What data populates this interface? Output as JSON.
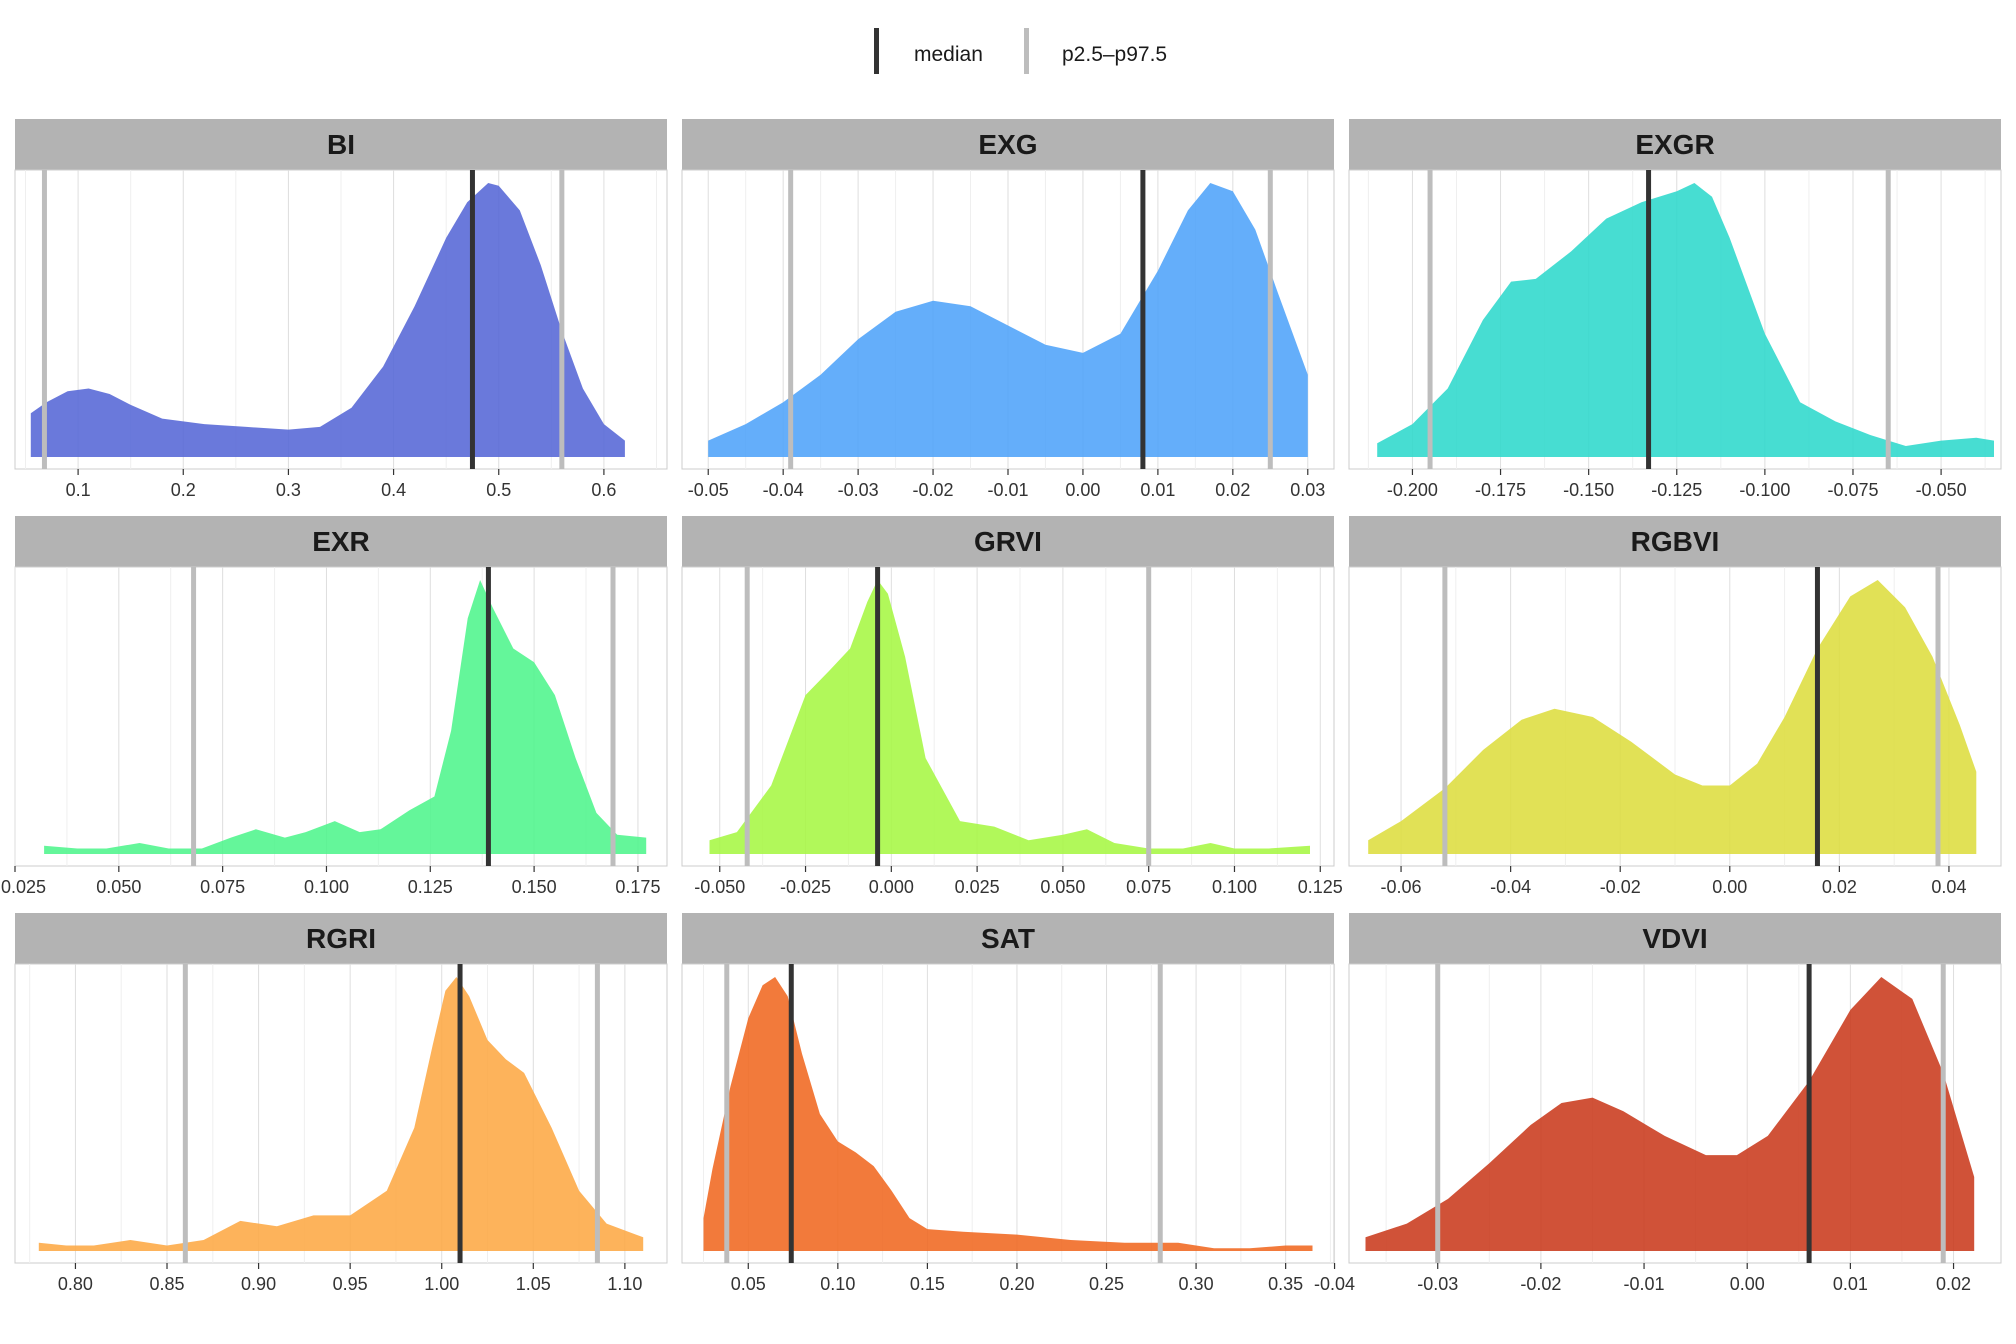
{
  "legend": {
    "median_label": "median",
    "range_label": "p2.5–p97.5",
    "median_color": "#333333",
    "range_color": "#bdbdbd"
  },
  "chart_data": [
    {
      "type": "area",
      "title": "BI",
      "color": "#5566D6",
      "xlim": [
        0.04,
        0.66
      ],
      "ticks": [
        0.1,
        0.2,
        0.3,
        0.4,
        0.5,
        0.6
      ],
      "tick_labels": [
        "0.1",
        "0.2",
        "0.3",
        "0.4",
        "0.5",
        "0.6"
      ],
      "median": 0.475,
      "p2_5": 0.068,
      "p97_5": 0.56,
      "density_x": [
        0.055,
        0.07,
        0.09,
        0.11,
        0.13,
        0.15,
        0.18,
        0.22,
        0.26,
        0.3,
        0.33,
        0.36,
        0.39,
        0.42,
        0.45,
        0.47,
        0.49,
        0.5,
        0.52,
        0.54,
        0.56,
        0.58,
        0.6,
        0.62
      ],
      "density_y": [
        0.16,
        0.2,
        0.24,
        0.25,
        0.23,
        0.19,
        0.14,
        0.12,
        0.11,
        0.1,
        0.11,
        0.18,
        0.33,
        0.55,
        0.8,
        0.93,
        1.0,
        0.99,
        0.9,
        0.7,
        0.46,
        0.25,
        0.12,
        0.06
      ]
    },
    {
      "type": "area",
      "title": "EXG",
      "color": "#4FA3F9",
      "xlim": [
        -0.0535,
        0.0335
      ],
      "ticks": [
        -0.05,
        -0.04,
        -0.03,
        -0.02,
        -0.01,
        0.0,
        0.01,
        0.02,
        0.03
      ],
      "tick_labels": [
        "-0.05",
        "-0.04",
        "-0.03",
        "-0.02",
        "-0.01",
        "0.00",
        "0.01",
        "0.02",
        "0.03"
      ],
      "median": 0.008,
      "p2_5": -0.039,
      "p97_5": 0.025,
      "density_x": [
        -0.05,
        -0.045,
        -0.04,
        -0.035,
        -0.03,
        -0.025,
        -0.02,
        -0.015,
        -0.01,
        -0.005,
        0.0,
        0.005,
        0.01,
        0.014,
        0.017,
        0.02,
        0.023,
        0.026,
        0.03
      ],
      "density_y": [
        0.06,
        0.12,
        0.2,
        0.3,
        0.43,
        0.53,
        0.57,
        0.55,
        0.48,
        0.41,
        0.38,
        0.45,
        0.68,
        0.9,
        1.0,
        0.97,
        0.83,
        0.6,
        0.3
      ]
    },
    {
      "type": "area",
      "title": "EXGR",
      "color": "#2DD8CC",
      "xlim": [
        -0.218,
        -0.033
      ],
      "ticks": [
        -0.2,
        -0.175,
        -0.15,
        -0.125,
        -0.1,
        -0.075,
        -0.05
      ],
      "tick_labels": [
        "-0.200",
        "-0.175",
        "-0.150",
        "-0.125",
        "-0.100",
        "-0.075",
        "-0.050"
      ],
      "median": -0.133,
      "p2_5": -0.195,
      "p97_5": -0.065,
      "density_x": [
        -0.21,
        -0.2,
        -0.19,
        -0.18,
        -0.172,
        -0.165,
        -0.155,
        -0.145,
        -0.135,
        -0.125,
        -0.12,
        -0.115,
        -0.11,
        -0.1,
        -0.09,
        -0.08,
        -0.07,
        -0.06,
        -0.05,
        -0.04,
        -0.035
      ],
      "density_y": [
        0.05,
        0.12,
        0.25,
        0.5,
        0.64,
        0.65,
        0.75,
        0.87,
        0.93,
        0.97,
        1.0,
        0.95,
        0.8,
        0.45,
        0.2,
        0.13,
        0.08,
        0.04,
        0.06,
        0.07,
        0.06
      ]
    },
    {
      "type": "area",
      "title": "EXR",
      "color": "#4EF58C",
      "xlim": [
        0.025,
        0.182
      ],
      "ticks": [
        0.025,
        0.05,
        0.075,
        0.1,
        0.125,
        0.15,
        0.175
      ],
      "tick_labels": [
        "0.025",
        "0.050",
        "0.075",
        "0.100",
        "0.125",
        "0.150",
        "0.175"
      ],
      "median": 0.139,
      "p2_5": 0.068,
      "p97_5": 0.169,
      "density_x": [
        0.032,
        0.04,
        0.047,
        0.055,
        0.062,
        0.07,
        0.077,
        0.083,
        0.09,
        0.095,
        0.102,
        0.108,
        0.113,
        0.12,
        0.126,
        0.13,
        0.134,
        0.137,
        0.14,
        0.145,
        0.15,
        0.155,
        0.16,
        0.165,
        0.17,
        0.177
      ],
      "density_y": [
        0.03,
        0.02,
        0.02,
        0.04,
        0.02,
        0.02,
        0.06,
        0.09,
        0.06,
        0.08,
        0.12,
        0.08,
        0.09,
        0.16,
        0.21,
        0.45,
        0.86,
        1.0,
        0.9,
        0.75,
        0.7,
        0.58,
        0.35,
        0.15,
        0.07,
        0.06
      ]
    },
    {
      "type": "area",
      "title": "GRVI",
      "color": "#A6F743",
      "xlim": [
        -0.061,
        0.129
      ],
      "ticks": [
        -0.05,
        -0.025,
        0.0,
        0.025,
        0.05,
        0.075,
        0.1,
        0.125
      ],
      "tick_labels": [
        "-0.050",
        "-0.025",
        "0.000",
        "0.025",
        "0.050",
        "0.075",
        "0.100",
        "0.125"
      ],
      "median": -0.004,
      "p2_5": -0.042,
      "p97_5": 0.075,
      "density_x": [
        -0.053,
        -0.045,
        -0.035,
        -0.025,
        -0.018,
        -0.012,
        -0.007,
        -0.004,
        -0.001,
        0.004,
        0.01,
        0.02,
        0.03,
        0.04,
        0.05,
        0.057,
        0.065,
        0.075,
        0.085,
        0.093,
        0.1,
        0.11,
        0.122
      ],
      "density_y": [
        0.05,
        0.08,
        0.25,
        0.58,
        0.67,
        0.75,
        0.92,
        1.0,
        0.95,
        0.72,
        0.35,
        0.12,
        0.1,
        0.05,
        0.07,
        0.09,
        0.04,
        0.02,
        0.02,
        0.04,
        0.02,
        0.02,
        0.03
      ]
    },
    {
      "type": "area",
      "title": "RGBVI",
      "color": "#DDDD3F",
      "xlim": [
        -0.0695,
        0.0495
      ],
      "ticks": [
        -0.06,
        -0.04,
        -0.02,
        0.0,
        0.02,
        0.04
      ],
      "tick_labels": [
        "-0.06",
        "-0.04",
        "-0.02",
        "0.00",
        "0.02",
        "0.04"
      ],
      "median": 0.016,
      "p2_5": -0.052,
      "p97_5": 0.038,
      "density_x": [
        -0.066,
        -0.06,
        -0.052,
        -0.045,
        -0.038,
        -0.032,
        -0.025,
        -0.018,
        -0.01,
        -0.005,
        0.0,
        0.005,
        0.01,
        0.016,
        0.022,
        0.027,
        0.032,
        0.037,
        0.042,
        0.045
      ],
      "density_y": [
        0.05,
        0.12,
        0.24,
        0.38,
        0.49,
        0.53,
        0.5,
        0.41,
        0.29,
        0.25,
        0.25,
        0.33,
        0.5,
        0.75,
        0.94,
        1.0,
        0.9,
        0.72,
        0.47,
        0.3
      ]
    },
    {
      "type": "area",
      "title": "RGRI",
      "color": "#FDA944",
      "xlim": [
        0.767,
        1.123
      ],
      "ticks": [
        0.8,
        0.85,
        0.9,
        0.95,
        1.0,
        1.05,
        1.1
      ],
      "tick_labels": [
        "0.80",
        "0.85",
        "0.90",
        "0.95",
        "1.00",
        "1.05",
        "1.10"
      ],
      "median": 1.01,
      "p2_5": 0.86,
      "p97_5": 1.085,
      "density_x": [
        0.78,
        0.795,
        0.81,
        0.83,
        0.85,
        0.87,
        0.89,
        0.91,
        0.93,
        0.95,
        0.97,
        0.985,
        0.995,
        1.002,
        1.008,
        1.015,
        1.025,
        1.035,
        1.045,
        1.06,
        1.075,
        1.09,
        1.11
      ],
      "density_y": [
        0.03,
        0.02,
        0.02,
        0.04,
        0.02,
        0.04,
        0.11,
        0.09,
        0.13,
        0.13,
        0.22,
        0.45,
        0.75,
        0.95,
        1.0,
        0.93,
        0.77,
        0.7,
        0.65,
        0.45,
        0.22,
        0.1,
        0.05
      ]
    },
    {
      "type": "area",
      "title": "SAT",
      "color": "#F06820",
      "xlim": [
        0.013,
        0.377
      ],
      "ticks": [
        0.05,
        0.1,
        0.15,
        0.2,
        0.25,
        0.3,
        0.35
      ],
      "tick_labels": [
        "0.05",
        "0.10",
        "0.15",
        "0.20",
        "0.25",
        "0.30",
        "0.35"
      ],
      "median": 0.074,
      "p2_5": 0.038,
      "p97_5": 0.28,
      "density_x": [
        0.025,
        0.03,
        0.04,
        0.05,
        0.058,
        0.065,
        0.072,
        0.08,
        0.09,
        0.1,
        0.11,
        0.12,
        0.13,
        0.14,
        0.15,
        0.17,
        0.2,
        0.23,
        0.26,
        0.29,
        0.31,
        0.33,
        0.35,
        0.365
      ],
      "density_y": [
        0.12,
        0.3,
        0.6,
        0.85,
        0.97,
        1.0,
        0.93,
        0.72,
        0.5,
        0.4,
        0.36,
        0.31,
        0.22,
        0.12,
        0.08,
        0.07,
        0.06,
        0.04,
        0.03,
        0.03,
        0.01,
        0.01,
        0.02,
        0.02
      ]
    },
    {
      "type": "area",
      "title": "VDVI",
      "color": "#C93A1C",
      "xlim": [
        -0.0386,
        0.0246
      ],
      "ticks": [
        -0.04,
        -0.03,
        -0.02,
        -0.01,
        0.0,
        0.01,
        0.02
      ],
      "tick_labels": [
        "-0.04",
        "-0.03",
        "-0.02",
        "-0.01",
        "0.00",
        "0.01",
        "0.02"
      ],
      "median": 0.006,
      "p2_5": -0.03,
      "p97_5": 0.019,
      "density_x": [
        -0.037,
        -0.033,
        -0.029,
        -0.025,
        -0.021,
        -0.018,
        -0.015,
        -0.012,
        -0.008,
        -0.004,
        -0.001,
        0.002,
        0.006,
        0.01,
        0.013,
        0.016,
        0.019,
        0.022
      ],
      "density_y": [
        0.05,
        0.1,
        0.19,
        0.32,
        0.46,
        0.54,
        0.56,
        0.51,
        0.42,
        0.35,
        0.35,
        0.42,
        0.62,
        0.88,
        1.0,
        0.92,
        0.65,
        0.27
      ]
    }
  ]
}
